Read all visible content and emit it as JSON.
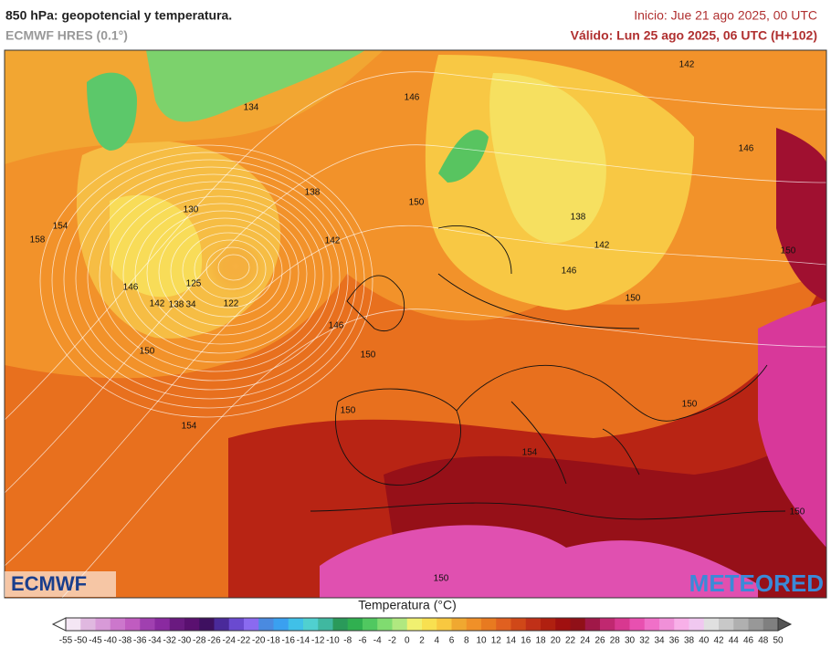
{
  "header": {
    "title": "850 hPa: geopotencial y temperatura.",
    "model": "ECMWF HRES (0.1°)",
    "init": "Inicio: Jue 21 ago 2025, 00 UTC",
    "valid": "Válido: Lun 25 ago 2025, 06 UTC (H+102)"
  },
  "map": {
    "contour_labels": [
      "142",
      "146",
      "134",
      "146",
      "138",
      "150",
      "130",
      "154",
      "138",
      "158",
      "142",
      "142",
      "150",
      "146",
      "125",
      "146",
      "142",
      "138",
      "34",
      "122",
      "150",
      "146",
      "150",
      "150",
      "150",
      "150",
      "154",
      "154",
      "150",
      "150"
    ]
  },
  "logos": {
    "left": "ECMWF",
    "right": "METEORED"
  },
  "legend": {
    "title": "Temperatura (°C)",
    "ticks": [
      -55,
      -50,
      -45,
      -40,
      -38,
      -36,
      -34,
      -32,
      -30,
      -28,
      -26,
      -24,
      -22,
      -20,
      -18,
      -16,
      -14,
      -12,
      -10,
      -8,
      -6,
      -4,
      -2,
      0,
      2,
      4,
      6,
      8,
      10,
      12,
      14,
      16,
      18,
      20,
      22,
      24,
      26,
      28,
      30,
      32,
      34,
      36,
      38,
      40,
      42,
      44,
      46,
      48,
      50
    ],
    "colors": [
      "#f4e6f4",
      "#e0b8e0",
      "#d89ad8",
      "#cc77cc",
      "#c05cc0",
      "#a040b0",
      "#8a2aa0",
      "#6a1a80",
      "#5a1070",
      "#3e1060",
      "#4a2a9a",
      "#6a4ad0",
      "#8a6af0",
      "#4a8ae0",
      "#3aa0f0",
      "#40c0e8",
      "#50d0d0",
      "#40b8a0",
      "#2a9a5a",
      "#30b050",
      "#50c860",
      "#80dc70",
      "#b0e880",
      "#f0f070",
      "#f8e050",
      "#f8c840",
      "#f0a830",
      "#f09028",
      "#e87a20",
      "#e06020",
      "#d04818",
      "#c03018",
      "#b02010",
      "#a01010",
      "#901018",
      "#a01848",
      "#c02870",
      "#d83890",
      "#e850b0",
      "#f070c8",
      "#f090d8",
      "#f8b0e8",
      "#f0c8f0",
      "#e0e0e0",
      "#c8c8c8",
      "#b0b0b0",
      "#989898",
      "#808080"
    ]
  }
}
